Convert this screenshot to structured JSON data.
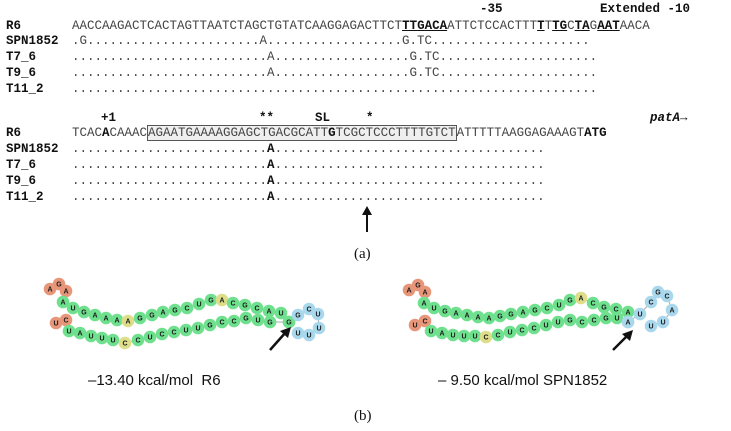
{
  "panel_a": {
    "block1": {
      "annotations": {
        "m35": "-35",
        "extended": "Extended -10"
      },
      "rows": [
        {
          "label": "R6",
          "seq_parts": [
            {
              "t": "AACCAAGACTCACTAGTTAATCTAGCTGTATCAAGGAGACTTCT",
              "s": "n"
            },
            {
              "t": "TTGACA",
              "s": "bu"
            },
            {
              "t": "ATTCTCCACTTT",
              "s": "n"
            },
            {
              "t": "T",
              "s": "bu"
            },
            {
              "t": "T",
              "s": "n"
            },
            {
              "t": "TG",
              "s": "bu"
            },
            {
              "t": "C",
              "s": "n"
            },
            {
              "t": "TA",
              "s": "bu"
            },
            {
              "t": "G",
              "s": "n"
            },
            {
              "t": "AAT",
              "s": "bu"
            },
            {
              "t": "AACA",
              "s": "n"
            }
          ]
        },
        {
          "label": "SPN1852",
          "seq": ".G.......................A..................G.TC....................."
        },
        {
          "label": "T7_6",
          "seq": "..........................A..................G.TC....................."
        },
        {
          "label": "T9_6",
          "seq": "..........................A..................G.TC....................."
        },
        {
          "label": "T11_2",
          "seq": "......................................................................"
        }
      ]
    },
    "block2": {
      "annotations": {
        "p1": "+1",
        "stars2": "**",
        "sl": "SL",
        "star1": "*",
        "gene": "patA→"
      },
      "rows": [
        {
          "label": "R6",
          "pre": "TCAC",
          "plus1": "A",
          "mid": "CAAAC",
          "boxed_a": "AGAATGAAAAGGAGCTGACGCATT",
          "snp": "G",
          "boxed_b": "TCGCTCCCTTTTGTCT",
          "post": "ATTTTTAAGGAGAAAGT",
          "start": "ATG"
        },
        {
          "label": "SPN1852",
          "left": "..........................",
          "snp": "A",
          "right": "...................................."
        },
        {
          "label": "T7_6",
          "left": "..........................",
          "snp": "A",
          "right": "...................................."
        },
        {
          "label": "T9_6",
          "left": "..........................",
          "snp": "A",
          "right": "...................................."
        },
        {
          "label": "T11_2",
          "left": "..........................",
          "snp": "A",
          "right": "...................................."
        }
      ]
    },
    "caption": "(a)"
  },
  "panel_b": {
    "left": {
      "energy": "–13.40 kcal/mol  R6"
    },
    "right": {
      "energy": "– 9.50 kcal/mol SPN1852"
    },
    "caption": "(b)",
    "colors": {
      "red": "#e8967a",
      "green": "#6ee08e",
      "yellow": "#dede8a",
      "blue": "#a9d8ec"
    }
  }
}
